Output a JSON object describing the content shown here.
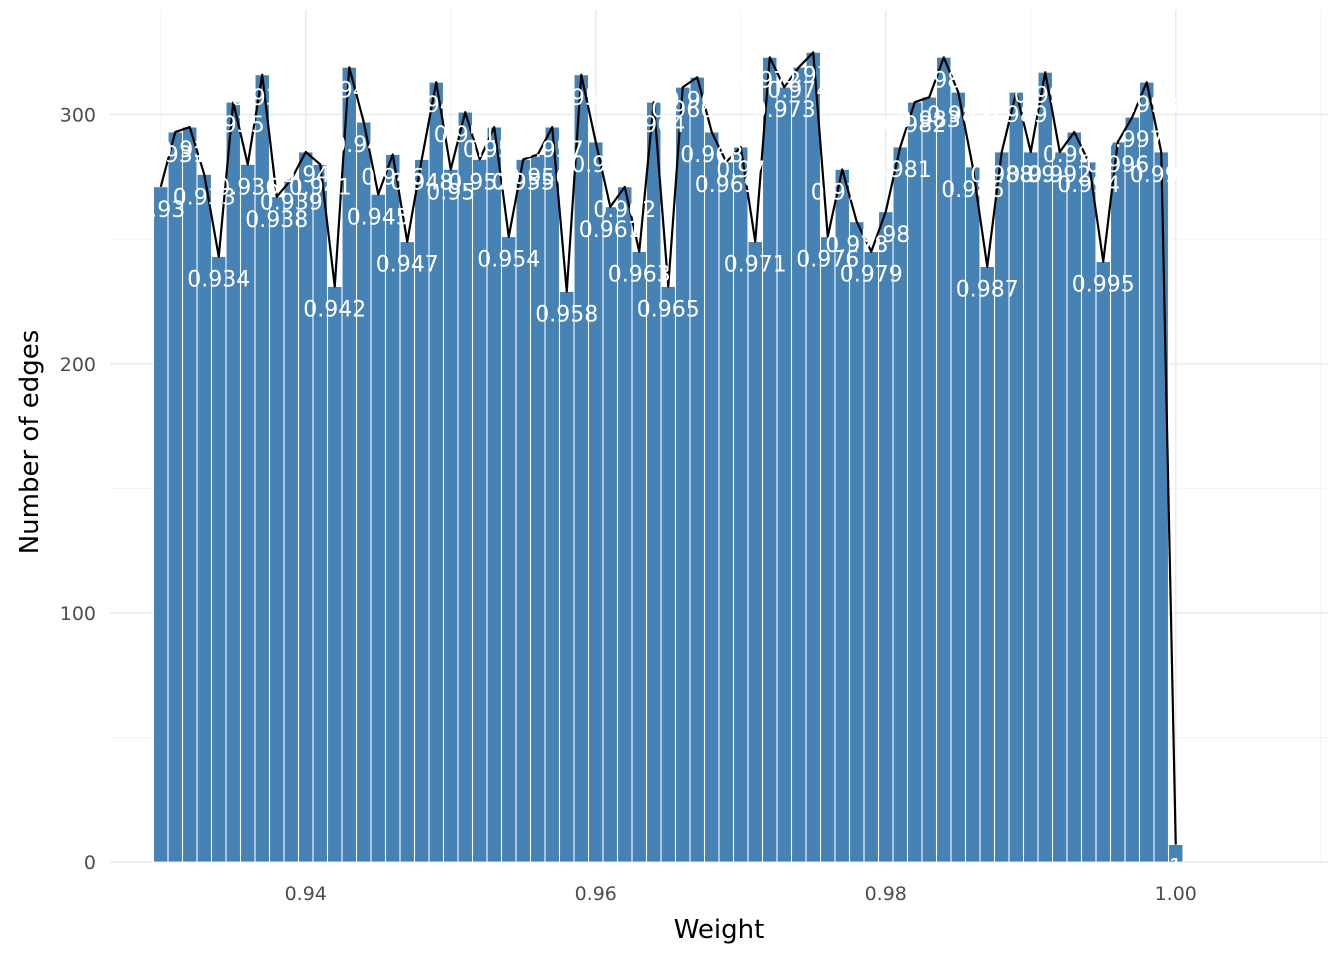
{
  "chart_data": {
    "type": "bar",
    "title": "",
    "xlabel": "Weight",
    "ylabel": "Number of edges",
    "xlim": [
      0.9265,
      1.0105
    ],
    "ylim": [
      0,
      342
    ],
    "x_ticks": [
      0.94,
      0.96,
      0.98,
      1.0
    ],
    "x_tick_labels": [
      "0.94",
      "0.96",
      "0.98",
      "1.00"
    ],
    "y_ticks": [
      0,
      100,
      200,
      300
    ],
    "y_tick_labels": [
      "0",
      "100",
      "200",
      "300"
    ],
    "grid": true,
    "colors": {
      "bar": "#4682b4",
      "line": "#000000",
      "label": "#ffffff",
      "grid": "#ebebeb"
    },
    "x": [
      0.93,
      0.931,
      0.932,
      0.933,
      0.934,
      0.935,
      0.936,
      0.937,
      0.938,
      0.939,
      0.94,
      0.941,
      0.942,
      0.943,
      0.944,
      0.945,
      0.946,
      0.947,
      0.948,
      0.949,
      0.95,
      0.951,
      0.952,
      0.953,
      0.954,
      0.955,
      0.956,
      0.957,
      0.958,
      0.959,
      0.96,
      0.961,
      0.962,
      0.963,
      0.964,
      0.965,
      0.966,
      0.967,
      0.968,
      0.969,
      0.97,
      0.971,
      0.972,
      0.973,
      0.974,
      0.975,
      0.976,
      0.977,
      0.978,
      0.979,
      0.98,
      0.981,
      0.982,
      0.983,
      0.984,
      0.985,
      0.986,
      0.987,
      0.988,
      0.989,
      0.99,
      0.991,
      0.992,
      0.993,
      0.994,
      0.995,
      0.996,
      0.997,
      0.998,
      0.999,
      1.0
    ],
    "values": [
      271,
      293,
      295,
      276,
      243,
      305,
      280,
      316,
      267,
      274,
      285,
      280,
      231,
      319,
      297,
      268,
      284,
      249,
      282,
      313,
      278,
      301,
      282,
      295,
      251,
      282,
      284,
      295,
      229,
      316,
      289,
      263,
      271,
      245,
      305,
      231,
      311,
      315,
      293,
      281,
      287,
      249,
      323,
      311,
      319,
      325,
      251,
      278,
      257,
      245,
      261,
      287,
      305,
      307,
      323,
      309,
      279,
      239,
      285,
      309,
      285,
      317,
      285,
      293,
      281,
      241,
      289,
      299,
      313,
      285,
      7
    ],
    "labels": [
      "0.93",
      "0.931",
      "0.932",
      "0.933",
      "0.934",
      "0.935",
      "0.936",
      "0.937",
      "0.938",
      "0.939",
      "0.94",
      "0.941",
      "0.942",
      "0.943",
      "0.944",
      "0.945",
      "0.946",
      "0.947",
      "0.948",
      "0.949",
      "0.95",
      "0.951",
      "0.952",
      "0.953",
      "0.954",
      "0.955",
      "0.956",
      "0.957",
      "0.958",
      "0.959",
      "0.96",
      "0.961",
      "0.962",
      "0.963",
      "0.964",
      "0.965",
      "0.966",
      "0.967",
      "0.968",
      "0.969",
      "0.97",
      "0.971",
      "0.972",
      "0.973",
      "0.974",
      "0.975",
      "0.976",
      "0.977",
      "0.978",
      "0.979",
      "0.98",
      "0.981",
      "0.982",
      "0.983",
      "0.984",
      "0.985",
      "0.986",
      "0.987",
      "0.988",
      "0.989",
      "0.99",
      "0.991",
      "0.992",
      "0.993",
      "0.994",
      "0.995",
      "0.996",
      "0.997",
      "0.998",
      "0.999",
      "1"
    ]
  }
}
